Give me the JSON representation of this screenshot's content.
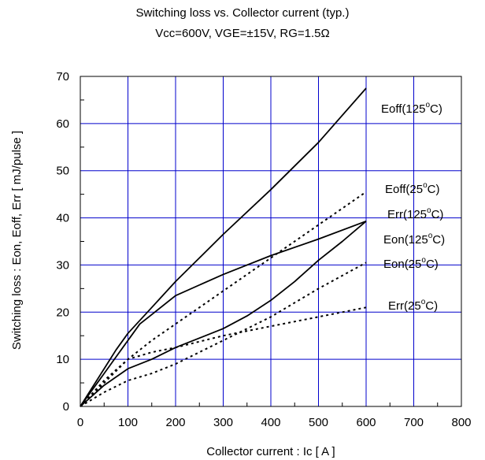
{
  "chart_data": {
    "type": "line",
    "title": "Switching loss vs. Collector current (typ.)",
    "subtitle": "Vcc=600V, VGE=±15V, RG=1.5Ω",
    "xlabel": "Collector current : Ic [ A ]",
    "ylabel": "Switching loss : Eon, Eoff, Err [ mJ/pulse ]",
    "xlim": [
      0,
      800
    ],
    "ylim": [
      0,
      70
    ],
    "xticks": [
      0,
      100,
      200,
      300,
      400,
      500,
      600,
      700,
      800
    ],
    "yticks": [
      0,
      10,
      20,
      30,
      40,
      50,
      60,
      70
    ],
    "grid": true,
    "grid_color": "#0000cc",
    "series": [
      {
        "name": "Eoff(125°C)",
        "label_main": "Eoff(125",
        "label_tail": "C)",
        "style": "solid",
        "x": [
          0,
          25,
          50,
          75,
          100,
          150,
          200,
          300,
          400,
          500,
          600
        ],
        "y": [
          0,
          4,
          8,
          12,
          15.5,
          21,
          26.5,
          36.5,
          46,
          56,
          67.5
        ]
      },
      {
        "name": "Eoff(25°C)",
        "label_main": "Eoff(25",
        "label_tail": "C)",
        "style": "dotted",
        "x": [
          0,
          50,
          100,
          150,
          200,
          300,
          400,
          500,
          600
        ],
        "y": [
          0,
          5.5,
          10,
          14,
          17.5,
          24.5,
          31.5,
          38.5,
          45.5
        ]
      },
      {
        "name": "Err(125°C)",
        "label_main": "Err(125",
        "label_tail": "C)",
        "style": "solid",
        "x": [
          0,
          25,
          50,
          75,
          100,
          125,
          150,
          200,
          300,
          400,
          500,
          600
        ],
        "y": [
          0,
          3.5,
          7,
          10.5,
          14,
          17.5,
          19.5,
          23.5,
          28,
          32,
          35.5,
          39.3
        ]
      },
      {
        "name": "Eon(125°C)",
        "label_main": "Eon(125",
        "label_tail": "C)",
        "style": "solid",
        "x": [
          0,
          50,
          100,
          150,
          200,
          250,
          300,
          350,
          400,
          450,
          500,
          550,
          600
        ],
        "y": [
          0,
          4.5,
          8,
          10,
          12.5,
          14.5,
          16.5,
          19.2,
          22.5,
          26.5,
          31,
          35,
          39.3
        ]
      },
      {
        "name": "Eon(25°C)",
        "label_main": "Eon(25",
        "label_tail": "C)",
        "style": "dotted",
        "x": [
          0,
          50,
          100,
          150,
          200,
          300,
          400,
          450,
          500,
          600
        ],
        "y": [
          0,
          3,
          5.5,
          7,
          9,
          14,
          19,
          22,
          25,
          30.5
        ]
      },
      {
        "name": "Err(25°C)",
        "label_main": "Err(25",
        "label_tail": "C)",
        "style": "dotted",
        "x": [
          0,
          25,
          50,
          75,
          100,
          150,
          200,
          300,
          400,
          500,
          600
        ],
        "y": [
          0,
          2.5,
          5,
          7.5,
          10,
          11.5,
          12.5,
          15,
          17,
          19,
          21
        ]
      }
    ]
  },
  "label_sup": "o",
  "series_color": "#000000"
}
